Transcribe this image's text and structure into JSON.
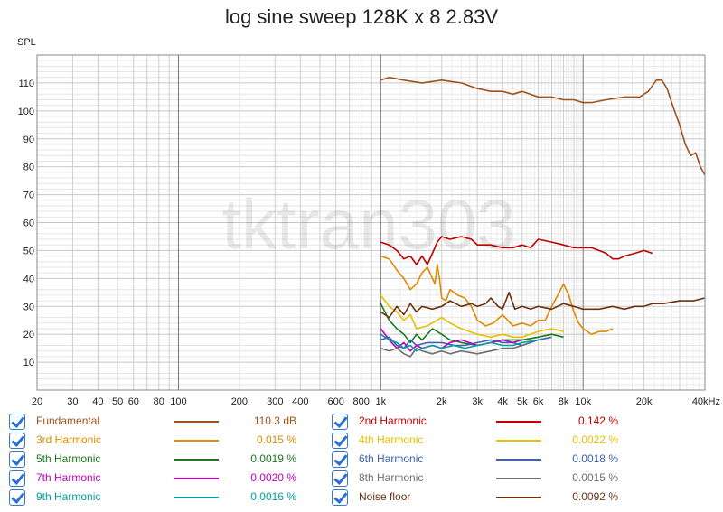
{
  "chart_data": {
    "type": "line",
    "title": "log sine sweep 128K x 8 2.83V",
    "ylabel": "SPL",
    "watermark": "tktran303",
    "x_scale": "log",
    "xlim": [
      20,
      40000
    ],
    "ylim": [
      0,
      120
    ],
    "x_ticks": [
      {
        "v": 20,
        "label": "20"
      },
      {
        "v": 30,
        "label": "30"
      },
      {
        "v": 40,
        "label": "40"
      },
      {
        "v": 50,
        "label": "50"
      },
      {
        "v": 60,
        "label": "60"
      },
      {
        "v": 80,
        "label": "80"
      },
      {
        "v": 100,
        "label": "100"
      },
      {
        "v": 200,
        "label": "200"
      },
      {
        "v": 300,
        "label": "300"
      },
      {
        "v": 400,
        "label": "400"
      },
      {
        "v": 600,
        "label": "600"
      },
      {
        "v": 800,
        "label": "800"
      },
      {
        "v": 1000,
        "label": "1k"
      },
      {
        "v": 2000,
        "label": "2k"
      },
      {
        "v": 3000,
        "label": "3k"
      },
      {
        "v": 4000,
        "label": "4k"
      },
      {
        "v": 5000,
        "label": "5k"
      },
      {
        "v": 6000,
        "label": "6k"
      },
      {
        "v": 8000,
        "label": "8k"
      },
      {
        "v": 10000,
        "label": "10k"
      },
      {
        "v": 20000,
        "label": "20k"
      },
      {
        "v": 40000,
        "label": "40kHz"
      }
    ],
    "y_ticks": [
      10,
      20,
      30,
      40,
      50,
      60,
      70,
      80,
      90,
      100,
      110
    ],
    "grid": true,
    "series": [
      {
        "name": "Fundamental",
        "color": "#a0521c",
        "value": "110.3 dB",
        "points": [
          [
            1000,
            111
          ],
          [
            1100,
            112
          ],
          [
            1300,
            111
          ],
          [
            1600,
            110
          ],
          [
            2000,
            111
          ],
          [
            2500,
            110
          ],
          [
            3000,
            108
          ],
          [
            3500,
            107
          ],
          [
            4000,
            107
          ],
          [
            4500,
            106
          ],
          [
            5000,
            107
          ],
          [
            6000,
            105
          ],
          [
            7000,
            105
          ],
          [
            8000,
            104
          ],
          [
            9000,
            104
          ],
          [
            10000,
            103
          ],
          [
            11000,
            103
          ],
          [
            13000,
            104
          ],
          [
            16000,
            105
          ],
          [
            19000,
            105
          ],
          [
            21000,
            107
          ],
          [
            23000,
            111
          ],
          [
            24500,
            111
          ],
          [
            26000,
            108
          ],
          [
            28000,
            101
          ],
          [
            30000,
            95
          ],
          [
            32000,
            88
          ],
          [
            34000,
            84
          ],
          [
            36000,
            85
          ],
          [
            38000,
            80
          ],
          [
            40000,
            77
          ]
        ]
      },
      {
        "name": "2nd Harmonic",
        "color": "#c00000",
        "value": "0.142 %",
        "points": [
          [
            1000,
            53
          ],
          [
            1100,
            52
          ],
          [
            1200,
            50
          ],
          [
            1300,
            47
          ],
          [
            1400,
            48
          ],
          [
            1500,
            45
          ],
          [
            1600,
            48
          ],
          [
            1700,
            45
          ],
          [
            1800,
            49
          ],
          [
            1900,
            53
          ],
          [
            2000,
            55
          ],
          [
            2200,
            54
          ],
          [
            2500,
            55
          ],
          [
            2800,
            54
          ],
          [
            3000,
            52
          ],
          [
            3500,
            52
          ],
          [
            4000,
            51
          ],
          [
            4500,
            51
          ],
          [
            5000,
            52
          ],
          [
            5500,
            51
          ],
          [
            6000,
            54
          ],
          [
            7000,
            53
          ],
          [
            8000,
            52
          ],
          [
            9000,
            51
          ],
          [
            10000,
            51
          ],
          [
            11000,
            51
          ],
          [
            12000,
            50
          ],
          [
            13000,
            49
          ],
          [
            14000,
            47
          ],
          [
            15000,
            47
          ],
          [
            16000,
            48
          ],
          [
            18000,
            49
          ],
          [
            20000,
            50
          ],
          [
            22000,
            49
          ]
        ]
      },
      {
        "name": "3rd Harmonic",
        "color": "#e08a00",
        "value": "0.015 %",
        "points": [
          [
            1000,
            48
          ],
          [
            1100,
            47
          ],
          [
            1200,
            43
          ],
          [
            1300,
            40
          ],
          [
            1400,
            36
          ],
          [
            1500,
            38
          ],
          [
            1600,
            42
          ],
          [
            1700,
            44
          ],
          [
            1800,
            40
          ],
          [
            1850,
            38
          ],
          [
            1900,
            45
          ],
          [
            1950,
            40
          ],
          [
            2000,
            33
          ],
          [
            2100,
            32
          ],
          [
            2200,
            36
          ],
          [
            2400,
            34
          ],
          [
            2600,
            33
          ],
          [
            2800,
            30
          ],
          [
            3000,
            25
          ],
          [
            3300,
            23
          ],
          [
            3600,
            24
          ],
          [
            4000,
            27
          ],
          [
            4500,
            23
          ],
          [
            5000,
            24
          ],
          [
            5500,
            23
          ],
          [
            6000,
            25
          ],
          [
            6500,
            25
          ],
          [
            7000,
            30
          ],
          [
            7500,
            34
          ],
          [
            8000,
            38
          ],
          [
            8500,
            34
          ],
          [
            9000,
            28
          ],
          [
            9500,
            24
          ],
          [
            10000,
            22
          ],
          [
            11000,
            20
          ],
          [
            12000,
            21
          ],
          [
            13000,
            21
          ],
          [
            14000,
            22
          ]
        ]
      },
      {
        "name": "4th Harmonic",
        "color": "#e8c000",
        "value": "0.0022 %",
        "points": [
          [
            1000,
            34
          ],
          [
            1100,
            30
          ],
          [
            1200,
            28
          ],
          [
            1300,
            25
          ],
          [
            1400,
            27
          ],
          [
            1500,
            22
          ],
          [
            1700,
            23
          ],
          [
            2000,
            26
          ],
          [
            2200,
            24
          ],
          [
            2500,
            22
          ],
          [
            3000,
            20
          ],
          [
            3500,
            19
          ],
          [
            4000,
            20
          ],
          [
            4500,
            19
          ],
          [
            5000,
            19
          ],
          [
            6000,
            21
          ],
          [
            7000,
            22
          ],
          [
            8000,
            21
          ]
        ]
      },
      {
        "name": "5th Harmonic",
        "color": "#1a7a1a",
        "value": "0.0019 %",
        "points": [
          [
            1000,
            31
          ],
          [
            1100,
            25
          ],
          [
            1200,
            22
          ],
          [
            1300,
            20
          ],
          [
            1400,
            17
          ],
          [
            1500,
            20
          ],
          [
            1600,
            18
          ],
          [
            1800,
            22
          ],
          [
            2000,
            20
          ],
          [
            2200,
            18
          ],
          [
            2500,
            17
          ],
          [
            3000,
            16
          ],
          [
            3500,
            17
          ],
          [
            4000,
            18
          ],
          [
            4500,
            18
          ],
          [
            5000,
            18
          ],
          [
            6000,
            19
          ],
          [
            7000,
            20
          ],
          [
            8000,
            19
          ]
        ]
      },
      {
        "name": "6th Harmonic",
        "color": "#3a62b0",
        "value": "0.0018 %",
        "points": [
          [
            1000,
            18
          ],
          [
            1100,
            19
          ],
          [
            1200,
            16
          ],
          [
            1300,
            15
          ],
          [
            1400,
            18
          ],
          [
            1500,
            16
          ],
          [
            1700,
            17
          ],
          [
            2000,
            17
          ],
          [
            2300,
            16
          ],
          [
            2600,
            16
          ],
          [
            3000,
            17
          ],
          [
            3500,
            18
          ],
          [
            4000,
            17
          ],
          [
            4500,
            17
          ],
          [
            5000,
            16
          ],
          [
            6000,
            18
          ],
          [
            7000,
            19
          ]
        ]
      },
      {
        "name": "7th Harmonic",
        "color": "#c000c0",
        "value": "0.0020 %",
        "points": [
          [
            1000,
            22
          ],
          [
            1100,
            18
          ],
          [
            1200,
            15
          ],
          [
            1300,
            17
          ],
          [
            1400,
            14
          ],
          [
            1500,
            16
          ],
          [
            1600,
            15
          ],
          [
            1800,
            16
          ],
          [
            2000,
            15
          ],
          [
            2200,
            17
          ],
          [
            2500,
            18
          ],
          [
            3000,
            16
          ],
          [
            3500,
            17
          ],
          [
            4000,
            18
          ],
          [
            4500,
            17
          ],
          [
            5000,
            18
          ]
        ]
      },
      {
        "name": "8th Harmonic",
        "color": "#707070",
        "value": "0.0015 %",
        "points": [
          [
            1000,
            15
          ],
          [
            1100,
            14
          ],
          [
            1200,
            15
          ],
          [
            1300,
            13
          ],
          [
            1400,
            12
          ],
          [
            1500,
            15
          ],
          [
            1600,
            14
          ],
          [
            1800,
            13
          ],
          [
            2000,
            14
          ],
          [
            2200,
            13
          ],
          [
            2500,
            14
          ],
          [
            3000,
            13
          ],
          [
            3500,
            14
          ],
          [
            4000,
            15
          ],
          [
            4500,
            15
          ],
          [
            5000,
            16
          ],
          [
            5500,
            17
          ]
        ]
      },
      {
        "name": "9th Harmonic",
        "color": "#00a0a0",
        "value": "0.0016 %",
        "points": [
          [
            1000,
            20
          ],
          [
            1100,
            18
          ],
          [
            1200,
            17
          ],
          [
            1300,
            15
          ],
          [
            1400,
            16
          ],
          [
            1500,
            14
          ],
          [
            1600,
            15
          ],
          [
            1800,
            16
          ],
          [
            2000,
            15
          ],
          [
            2300,
            16
          ],
          [
            2600,
            15
          ],
          [
            3000,
            16
          ],
          [
            3500,
            17
          ],
          [
            4000,
            16
          ],
          [
            4500,
            16
          ],
          [
            5000,
            17
          ],
          [
            6000,
            18
          ]
        ]
      },
      {
        "name": "Noise floor",
        "color": "#6b3212",
        "value": "0.0092 %",
        "points": [
          [
            1000,
            28
          ],
          [
            1100,
            26
          ],
          [
            1200,
            30
          ],
          [
            1300,
            27
          ],
          [
            1400,
            31
          ],
          [
            1500,
            28
          ],
          [
            1600,
            30
          ],
          [
            1800,
            29
          ],
          [
            2000,
            30
          ],
          [
            2200,
            32
          ],
          [
            2500,
            30
          ],
          [
            2800,
            31
          ],
          [
            3000,
            30
          ],
          [
            3300,
            31
          ],
          [
            3500,
            33
          ],
          [
            3800,
            30
          ],
          [
            4000,
            29
          ],
          [
            4300,
            35
          ],
          [
            4600,
            29
          ],
          [
            5000,
            30
          ],
          [
            5500,
            29
          ],
          [
            6000,
            30
          ],
          [
            7000,
            29
          ],
          [
            8000,
            31
          ],
          [
            9000,
            30
          ],
          [
            10000,
            29
          ],
          [
            12000,
            29
          ],
          [
            14000,
            30
          ],
          [
            16000,
            29
          ],
          [
            18000,
            30
          ],
          [
            20000,
            30
          ],
          [
            22000,
            31
          ],
          [
            25000,
            31
          ],
          [
            30000,
            32
          ],
          [
            35000,
            32
          ],
          [
            40000,
            33
          ]
        ]
      }
    ]
  }
}
